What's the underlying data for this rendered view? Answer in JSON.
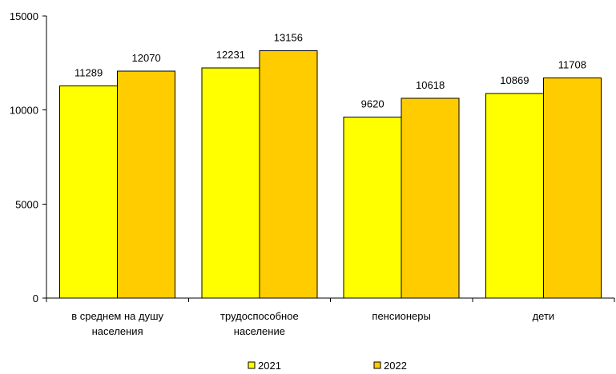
{
  "chart_data": {
    "type": "bar",
    "categories": [
      [
        "в среднем на душу",
        "населения"
      ],
      [
        "трудоспособное",
        "население"
      ],
      [
        "пенсионеры"
      ],
      [
        "дети"
      ]
    ],
    "series": [
      {
        "name": "2021",
        "values": [
          11289,
          12231,
          9620,
          10869
        ],
        "color": "#FFFF00"
      },
      {
        "name": "2022",
        "values": [
          12070,
          13156,
          10618,
          11708
        ],
        "color": "#FFCC00"
      }
    ],
    "ylim": [
      0,
      15000
    ],
    "yticks": [
      "0",
      "5000",
      "10000",
      "15000"
    ],
    "grid": false,
    "legend_position": "bottom"
  }
}
